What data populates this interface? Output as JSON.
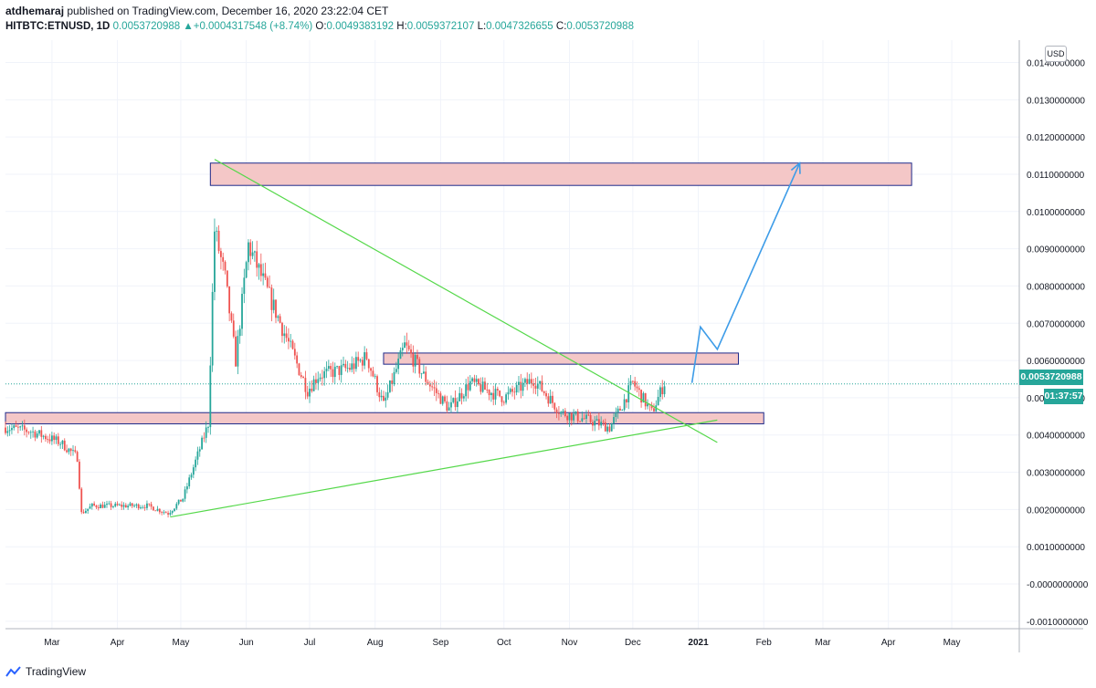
{
  "header": {
    "author": "atdhemaraj",
    "published_text": "published on TradingView.com, December 16, 2020 23:22:04 CET",
    "symbol": "HITBTC:ETNUSD, 1D",
    "last": "0.0053720988",
    "change": "+0.0004317548 (+8.74%)",
    "o_label": "O:",
    "o_value": "0.0049383192",
    "h_label": "H:",
    "h_value": "0.0059372107",
    "l_label": "L:",
    "l_value": "0.0047326655",
    "c_label": "C:",
    "c_value": "0.0053720988"
  },
  "currency_button": "USD",
  "price_tag": "0.0053720988",
  "countdown_tag": "01:37:57",
  "footer": {
    "brand": "TradingView"
  },
  "colors": {
    "up": "#26a69a",
    "down": "#ef5350",
    "zone_fill": "#f4c7c7",
    "zone_border": "#1e2a8a",
    "trendline": "#55d84a",
    "projection": "#3d9ce8",
    "grid": "#f0f3fa"
  },
  "chart_data": {
    "type": "candlestick",
    "title": "HITBTC:ETNUSD, 1D",
    "x_ticks": [
      "Mar",
      "Apr",
      "May",
      "Jun",
      "Jul",
      "Aug",
      "Sep",
      "Oct",
      "Nov",
      "Dec",
      "2021",
      "Feb",
      "Mar",
      "Apr",
      "May"
    ],
    "y_ticks": [
      "0.0140000000",
      "0.0130000000",
      "0.0120000000",
      "0.0110000000",
      "0.0100000000",
      "0.0090000000",
      "0.0080000000",
      "0.0070000000",
      "0.0060000000",
      "0.0050000000",
      "0.0040000000",
      "0.0030000000",
      "0.0020000000",
      "0.0010000000",
      "-0.0000000000",
      "-0.0010000000"
    ],
    "ylim": [
      -0.0012,
      0.0146
    ],
    "grid": true,
    "close_path": [
      [
        "2020-02-08",
        0.0042
      ],
      [
        "2020-02-20",
        0.0041
      ],
      [
        "2020-03-05",
        0.0038
      ],
      [
        "2020-03-13",
        0.0034
      ],
      [
        "2020-03-15",
        0.0019
      ],
      [
        "2020-03-20",
        0.0021
      ],
      [
        "2020-04-01",
        0.0021
      ],
      [
        "2020-04-15",
        0.0021
      ],
      [
        "2020-04-25",
        0.0019
      ],
      [
        "2020-05-02",
        0.0023
      ],
      [
        "2020-05-08",
        0.0033
      ],
      [
        "2020-05-14",
        0.0043
      ],
      [
        "2020-05-17",
        0.0095
      ],
      [
        "2020-05-22",
        0.0082
      ],
      [
        "2020-05-27",
        0.006
      ],
      [
        "2020-06-02",
        0.0091
      ],
      [
        "2020-06-15",
        0.0073
      ],
      [
        "2020-06-30",
        0.0052
      ],
      [
        "2020-07-05",
        0.0056
      ],
      [
        "2020-07-20",
        0.0058
      ],
      [
        "2020-07-28",
        0.0061
      ],
      [
        "2020-08-05",
        0.0048
      ],
      [
        "2020-08-15",
        0.0064
      ],
      [
        "2020-08-25",
        0.0055
      ],
      [
        "2020-09-05",
        0.0047
      ],
      [
        "2020-09-15",
        0.0054
      ],
      [
        "2020-10-01",
        0.005
      ],
      [
        "2020-10-15",
        0.0055
      ],
      [
        "2020-10-28",
        0.0046
      ],
      [
        "2020-11-10",
        0.0044
      ],
      [
        "2020-11-20",
        0.0042
      ],
      [
        "2020-11-25",
        0.0047
      ],
      [
        "2020-12-01",
        0.0054
      ],
      [
        "2020-12-10",
        0.0046
      ],
      [
        "2020-12-16",
        0.0054
      ]
    ],
    "resistance_zones": [
      {
        "from": "2020-05-15",
        "to": "2021-04-12",
        "low": 0.0107,
        "high": 0.0113
      },
      {
        "from": "2020-08-05",
        "to": "2021-01-20",
        "low": 0.0059,
        "high": 0.0062
      },
      {
        "from": "2020-02-08",
        "to": "2021-02-01",
        "low": 0.0043,
        "high": 0.0046
      }
    ],
    "trendlines": [
      {
        "from": [
          "2020-05-17",
          0.0114
        ],
        "to": [
          "2021-01-10",
          0.0038
        ]
      },
      {
        "from": [
          "2020-04-26",
          0.0018
        ],
        "to": [
          "2021-01-10",
          0.0044
        ]
      }
    ],
    "projection": [
      [
        "2020-12-29",
        0.0054
      ],
      [
        "2021-01-02",
        0.0069
      ],
      [
        "2021-01-10",
        0.0063
      ],
      [
        "2021-02-18",
        0.0113
      ]
    ],
    "last_price": 0.0053720988
  }
}
